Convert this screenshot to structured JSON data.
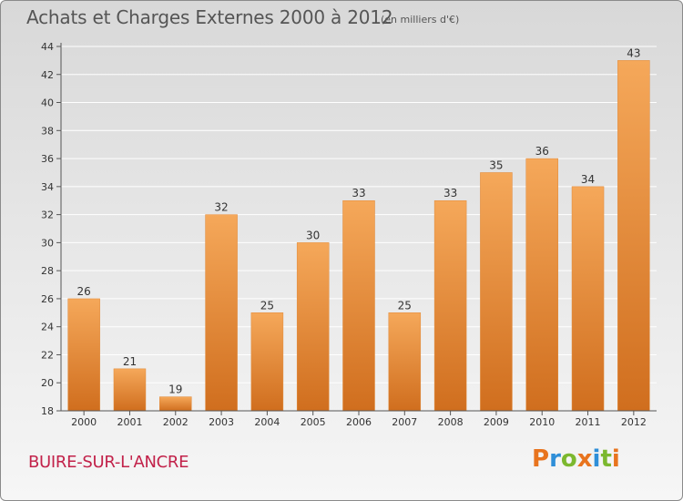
{
  "title": "Achats et Charges Externes 2000 à 2012",
  "unit_note": "(en milliers d'€)",
  "location": "BUIRE-SUR-L'ANCRE",
  "logo": {
    "text": "Proxiti",
    "letter_colors": [
      "#e8741e",
      "#2f8fd8",
      "#7cb82f",
      "#e8741e",
      "#2f8fd8",
      "#7cb82f",
      "#e8741e"
    ]
  },
  "colors": {
    "bar_top": "#f5a85a",
    "bar_bottom": "#d06e1e",
    "bar_edge": "#e08a3a",
    "grid": "#ffffff",
    "axis": "#555555",
    "location_text": "#c2224a"
  },
  "chart_data": {
    "type": "bar",
    "title": "Achats et Charges Externes 2000 à 2012",
    "subtitle": "(en milliers d'€)",
    "xlabel": "",
    "ylabel": "",
    "categories": [
      "2000",
      "2001",
      "2002",
      "2003",
      "2004",
      "2005",
      "2006",
      "2007",
      "2008",
      "2009",
      "2010",
      "2011",
      "2012"
    ],
    "values": [
      26,
      21,
      19,
      32,
      25,
      30,
      33,
      25,
      33,
      35,
      36,
      34,
      43
    ],
    "ylim": [
      18,
      44
    ],
    "yticks": [
      18,
      20,
      22,
      24,
      26,
      28,
      30,
      32,
      34,
      36,
      38,
      40,
      42,
      44
    ],
    "grid": true,
    "data_labels": true
  }
}
